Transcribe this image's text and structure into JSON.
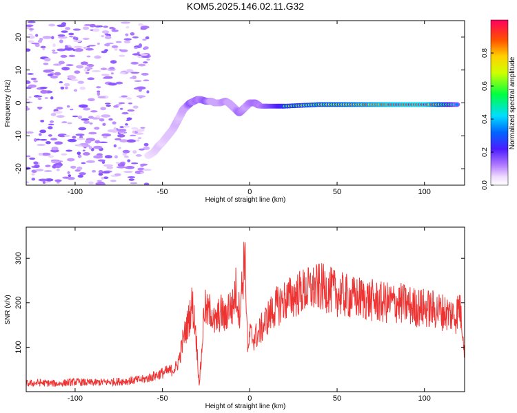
{
  "title": "KOM5.2025.146.02.11.G32",
  "chart_data": [
    {
      "type": "heatmap",
      "xlabel": "Height of straight line (km)",
      "ylabel": "Frequency (Hz)",
      "xlim": [
        -128,
        123
      ],
      "ylim": [
        -25,
        25
      ],
      "xticks": [
        -100,
        -50,
        0,
        50,
        100
      ],
      "yticks": [
        -20,
        -10,
        0,
        10,
        20
      ],
      "colorbar": {
        "label": "Normalized spectral amplitude",
        "range": [
          0,
          1
        ],
        "ticks": [
          0.0,
          0.2,
          0.4,
          0.6,
          0.8
        ]
      },
      "ridge_frequency_trace": {
        "x": [
          -58,
          -55,
          -52,
          -50,
          -47,
          -44,
          -42,
          -40,
          -38,
          -36,
          -34,
          -32,
          -30,
          -28,
          -25,
          -22,
          -20,
          -17,
          -14,
          -12,
          -10,
          -8,
          -6,
          -4,
          -2,
          0,
          3,
          6,
          10,
          20,
          40,
          60,
          80,
          100,
          120
        ],
        "y": [
          -16,
          -15,
          -13,
          -12,
          -10,
          -8,
          -6,
          -4,
          -2,
          -1,
          0,
          0.5,
          1,
          1,
          0.5,
          0.5,
          0,
          0,
          0.5,
          0,
          -1,
          -2,
          -3,
          -2,
          -1,
          0,
          0,
          -1,
          -1,
          -1,
          -0.5,
          -0.5,
          -0.5,
          -0.5,
          -0.5
        ],
        "amplitude": [
          0.1,
          0.12,
          0.15,
          0.12,
          0.15,
          0.15,
          0.18,
          0.15,
          0.2,
          0.2,
          0.35,
          0.25,
          0.3,
          0.25,
          0.35,
          0.2,
          0.2,
          0.2,
          0.25,
          0.2,
          0.2,
          0.2,
          0.3,
          0.25,
          0.2,
          0.25,
          0.3,
          0.25,
          0.35,
          0.55,
          0.65,
          0.75,
          0.9,
          0.95,
          0.3
        ]
      }
    },
    {
      "type": "line",
      "xlabel": "Height of straight line (km)",
      "ylabel": "SNR (v/v)",
      "xlim": [
        -128,
        123
      ],
      "ylim": [
        0,
        370
      ],
      "xticks": [
        -100,
        -50,
        0,
        50,
        100
      ],
      "yticks": [
        100,
        200,
        300
      ],
      "series_color": "#ee3333",
      "series": [
        {
          "x": [
            -128,
            -120,
            -110,
            -100,
            -90,
            -80,
            -70,
            -60,
            -55,
            -50,
            -45,
            -42,
            -40,
            -38,
            -35,
            -33,
            -31,
            -29,
            -28,
            -26,
            -24,
            -22,
            -20,
            -18,
            -16,
            -14,
            -12,
            -10,
            -8,
            -6,
            -4,
            -3,
            -2,
            -1,
            0,
            2,
            5,
            10,
            15,
            20,
            25,
            30,
            35,
            40,
            45,
            50,
            55,
            60,
            65,
            70,
            75,
            80,
            85,
            90,
            95,
            100,
            105,
            110,
            115,
            118,
            120,
            122,
            123
          ],
          "y": [
            18,
            20,
            18,
            22,
            20,
            22,
            24,
            28,
            35,
            42,
            48,
            55,
            80,
            120,
            160,
            200,
            140,
            20,
            60,
            190,
            175,
            185,
            150,
            170,
            180,
            160,
            195,
            185,
            230,
            180,
            250,
            320,
            210,
            80,
            130,
            120,
            130,
            165,
            190,
            205,
            215,
            225,
            230,
            235,
            230,
            220,
            215,
            210,
            210,
            205,
            200,
            200,
            200,
            195,
            190,
            188,
            185,
            180,
            175,
            170,
            195,
            140,
            90
          ]
        }
      ]
    }
  ]
}
